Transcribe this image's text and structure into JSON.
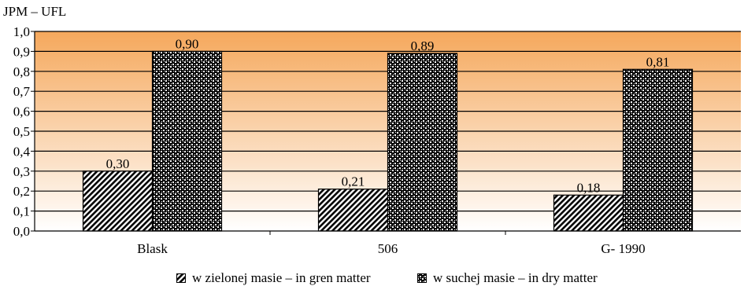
{
  "chart_data": {
    "type": "bar",
    "ylabel": "JPM – UFL",
    "categories": [
      "Blask",
      "506",
      "G- 1990"
    ],
    "series": [
      {
        "name": "w zielonej masie – in gren matter",
        "values": [
          0.3,
          0.21,
          0.18
        ],
        "labels": [
          "0,30",
          "0,21",
          "0,18"
        ],
        "pattern": "diagonal-hatch"
      },
      {
        "name": "w suchej masie – in dry matter",
        "values": [
          0.9,
          0.89,
          0.81
        ],
        "labels": [
          "0,90",
          "0,89",
          "0,81"
        ],
        "pattern": "dots"
      }
    ],
    "ylim": [
      0,
      1.0
    ],
    "yticks": [
      0,
      0.1,
      0.2,
      0.3,
      0.4,
      0.5,
      0.6,
      0.7,
      0.8,
      0.9,
      1.0
    ],
    "ytick_labels": [
      "0,0",
      "0,1",
      "0,2",
      "0,3",
      "0,4",
      "0,5",
      "0,6",
      "0,7",
      "0,8",
      "0,9",
      "1,0"
    ],
    "grid": true,
    "legend_position": "bottom",
    "background_gradient": [
      "#f4a460",
      "#ffffff"
    ]
  }
}
